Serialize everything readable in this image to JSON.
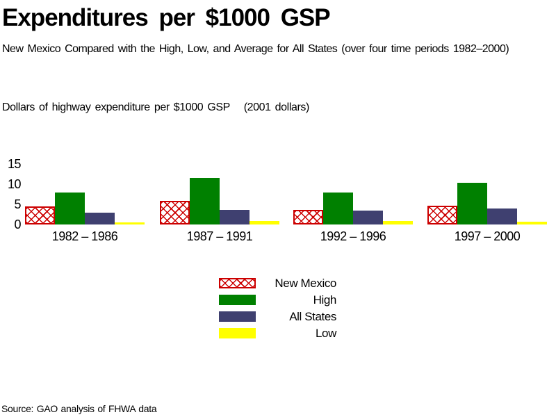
{
  "chart_data": {
    "type": "grouped_bar",
    "title": "Expenditures per $1000 GSP",
    "subtitle": "New Mexico Compared with the High, Low, and Average for All States (over four time periods 1982–2000)",
    "ylabel": "Dollars of highway expenditure per $1000 GSP",
    "ylabel_note": "(2001 dollars)",
    "categories": [
      "1982 – 1986",
      "1987 – 1991",
      "1992 – 1996",
      "1997 – 2000"
    ],
    "series": [
      {
        "name": "New Mexico",
        "style": "red-crosshatch",
        "color": "#CC0000",
        "values": [
          4.5,
          5.9,
          3.7,
          4.6
        ]
      },
      {
        "name": "High",
        "style": "solid",
        "color": "#008000",
        "values": [
          8.0,
          11.5,
          7.9,
          10.4
        ]
      },
      {
        "name": "All States",
        "style": "solid",
        "color": "#3F4070",
        "values": [
          3.0,
          3.6,
          3.4,
          4.0
        ]
      },
      {
        "name": "Low",
        "style": "solid",
        "color": "#FFFF00",
        "values": [
          0.6,
          0.8,
          0.9,
          0.7
        ]
      }
    ],
    "yticks": [
      0,
      5,
      10,
      15
    ],
    "ylim": [
      0,
      15
    ],
    "grid": false,
    "legend_position": "bottom-center",
    "source": "Source: GAO analysis of FHWA data"
  }
}
